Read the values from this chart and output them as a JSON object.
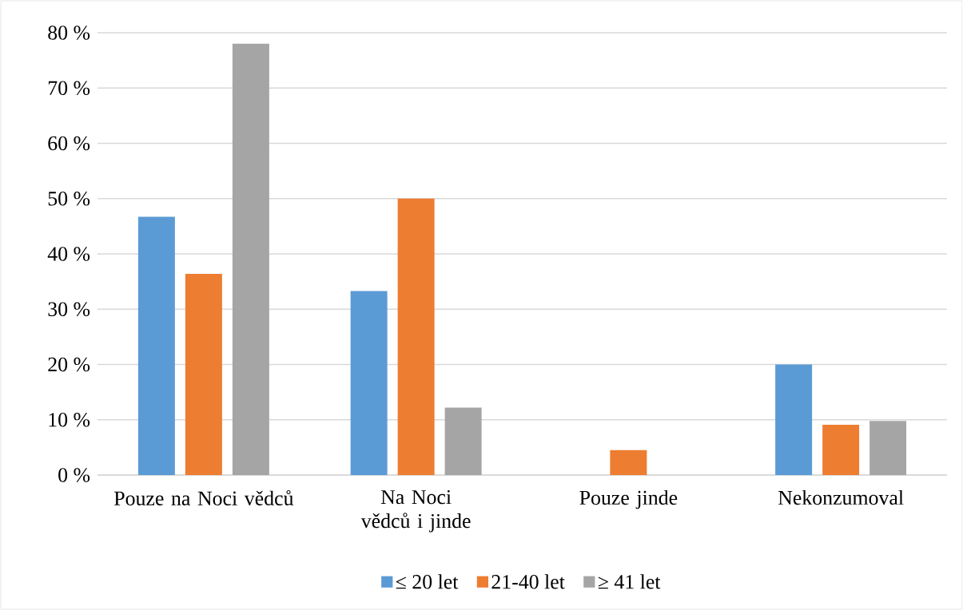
{
  "chart_data": {
    "type": "bar",
    "categories": [
      "Pouze na Noci vědců",
      "Na Noci vědců i jinde",
      "Pouze jinde",
      "Nekonzumoval"
    ],
    "series": [
      {
        "name": "≤ 20 let",
        "color": "#5b9bd5",
        "values": [
          46.7,
          33.3,
          0,
          20
        ]
      },
      {
        "name": "21-40 let",
        "color": "#ed7d31",
        "values": [
          36.4,
          50,
          4.5,
          9.1
        ]
      },
      {
        "name": "≥ 41 let",
        "color": "#a5a5a5",
        "values": [
          78,
          12.2,
          0,
          9.8
        ]
      }
    ],
    "ylim": [
      0,
      80
    ],
    "yticks": [
      {
        "value": 0,
        "label": "0 %"
      },
      {
        "value": 10,
        "label": "10 %"
      },
      {
        "value": 20,
        "label": "20 %"
      },
      {
        "value": 30,
        "label": "30 %"
      },
      {
        "value": 40,
        "label": "40 %"
      },
      {
        "value": 50,
        "label": "50 %"
      },
      {
        "value": 60,
        "label": "60 %"
      },
      {
        "value": 70,
        "label": "70 %"
      },
      {
        "value": 80,
        "label": "80 %"
      }
    ],
    "grid": "y",
    "legend": "bottom"
  }
}
